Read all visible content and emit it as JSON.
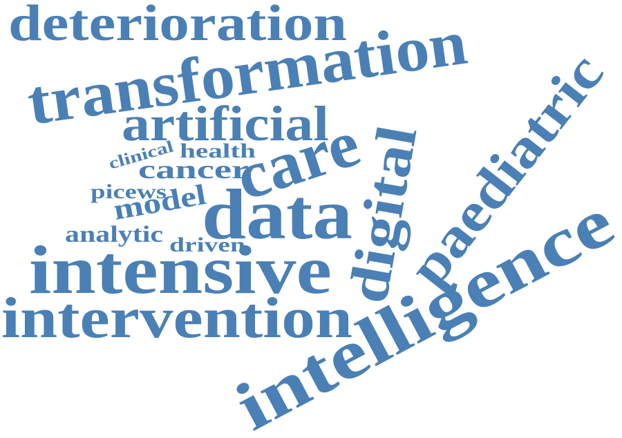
{
  "word_cloud": {
    "color": "#4a80b5",
    "words": {
      "deterioration": "deterioration",
      "transformation": "transformation",
      "artificial": "artificial",
      "clinical": "clinical",
      "health": "health",
      "cancer": "cancer",
      "care": "care",
      "picews": "picews",
      "model": "model",
      "data": "data",
      "analytic": "analytic",
      "driven": "driven",
      "intensive": "intensive",
      "intervention": "intervention",
      "digital": "digital",
      "paediatric": "paediatric",
      "intelligence": "intelligence"
    }
  }
}
